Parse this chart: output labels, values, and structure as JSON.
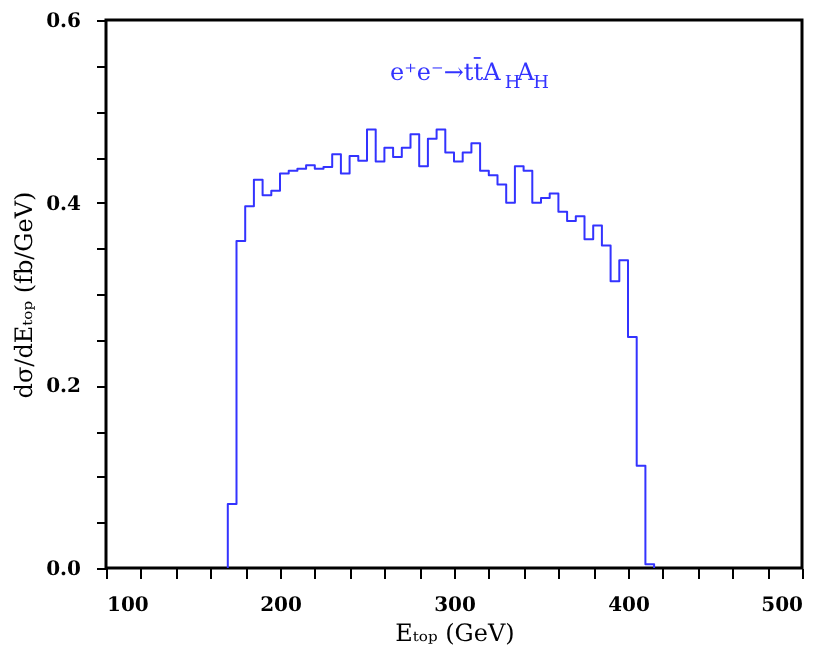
{
  "chart_data": {
    "type": "histogram",
    "xlabel": "Eₜₒₚ (GeV)",
    "ylabel": "dσ/dEₜₒₚ (fb/GeV)",
    "annotations": [
      "e⁺e⁻→tt̄A$_{H}$A$_{H}$"
    ],
    "bins": [
      170,
      175,
      180,
      185,
      190,
      195,
      200,
      205,
      210,
      215,
      220,
      225,
      230,
      235,
      240,
      245,
      250,
      255,
      260,
      265,
      270,
      275,
      280,
      285,
      290,
      295,
      300,
      305,
      310,
      315,
      320,
      325,
      330,
      335,
      340,
      345,
      350,
      355,
      360,
      365,
      370,
      375,
      380,
      385,
      390,
      395,
      400,
      405,
      410,
      415
    ],
    "values": [
      0.07,
      0.358,
      0.396,
      0.425,
      0.408,
      0.413,
      0.432,
      0.435,
      0.437,
      0.441,
      0.437,
      0.439,
      0.453,
      0.432,
      0.451,
      0.446,
      0.48,
      0.445,
      0.46,
      0.45,
      0.46,
      0.475,
      0.44,
      0.47,
      0.48,
      0.455,
      0.445,
      0.455,
      0.465,
      0.435,
      0.43,
      0.42,
      0.4,
      0.44,
      0.435,
      0.4,
      0.405,
      0.41,
      0.39,
      0.38,
      0.385,
      0.36,
      0.375,
      0.353,
      0.314,
      0.337,
      0.253,
      0.112,
      0.004
    ],
    "color": "#3333ff",
    "xlim": [
      100,
      500
    ],
    "ylim": [
      0,
      0.6
    ],
    "xticks": [
      100,
      {
        "value": 120,
        "label": null
      },
      {
        "value": 140,
        "label": null
      },
      {
        "value": 160,
        "label": null
      },
      {
        "value": 180,
        "label": null
      },
      200,
      {
        "value": 220,
        "label": null
      },
      {
        "value": 240,
        "label": null
      },
      {
        "value": 260,
        "label": null
      },
      {
        "value": 280,
        "label": null
      },
      300,
      {
        "value": 320,
        "label": null
      },
      {
        "value": 340,
        "label": null
      },
      {
        "value": 360,
        "label": null
      },
      {
        "value": 380,
        "label": null
      },
      400,
      {
        "value": 420,
        "label": null
      },
      {
        "value": 440,
        "label": null
      },
      {
        "value": 460,
        "label": null
      },
      {
        "value": 480,
        "label": null
      },
      500
    ],
    "yticks": [
      {
        "value": 0,
        "label": "0.0"
      },
      {
        "value": 0.05,
        "label": null
      },
      {
        "value": 0.1,
        "label": null
      },
      {
        "value": 0.15,
        "label": null
      },
      {
        "value": 0.2,
        "label": "0.2"
      },
      {
        "value": 0.25,
        "label": null
      },
      {
        "value": 0.3,
        "label": null
      },
      {
        "value": 0.35,
        "label": null
      },
      {
        "value": 0.4,
        "label": "0.4"
      },
      {
        "value": 0.45,
        "label": null
      },
      {
        "value": 0.5,
        "label": null
      },
      {
        "value": 0.55,
        "label": null
      },
      {
        "value": 0.6,
        "label": "0.6"
      }
    ],
    "grid": false
  }
}
